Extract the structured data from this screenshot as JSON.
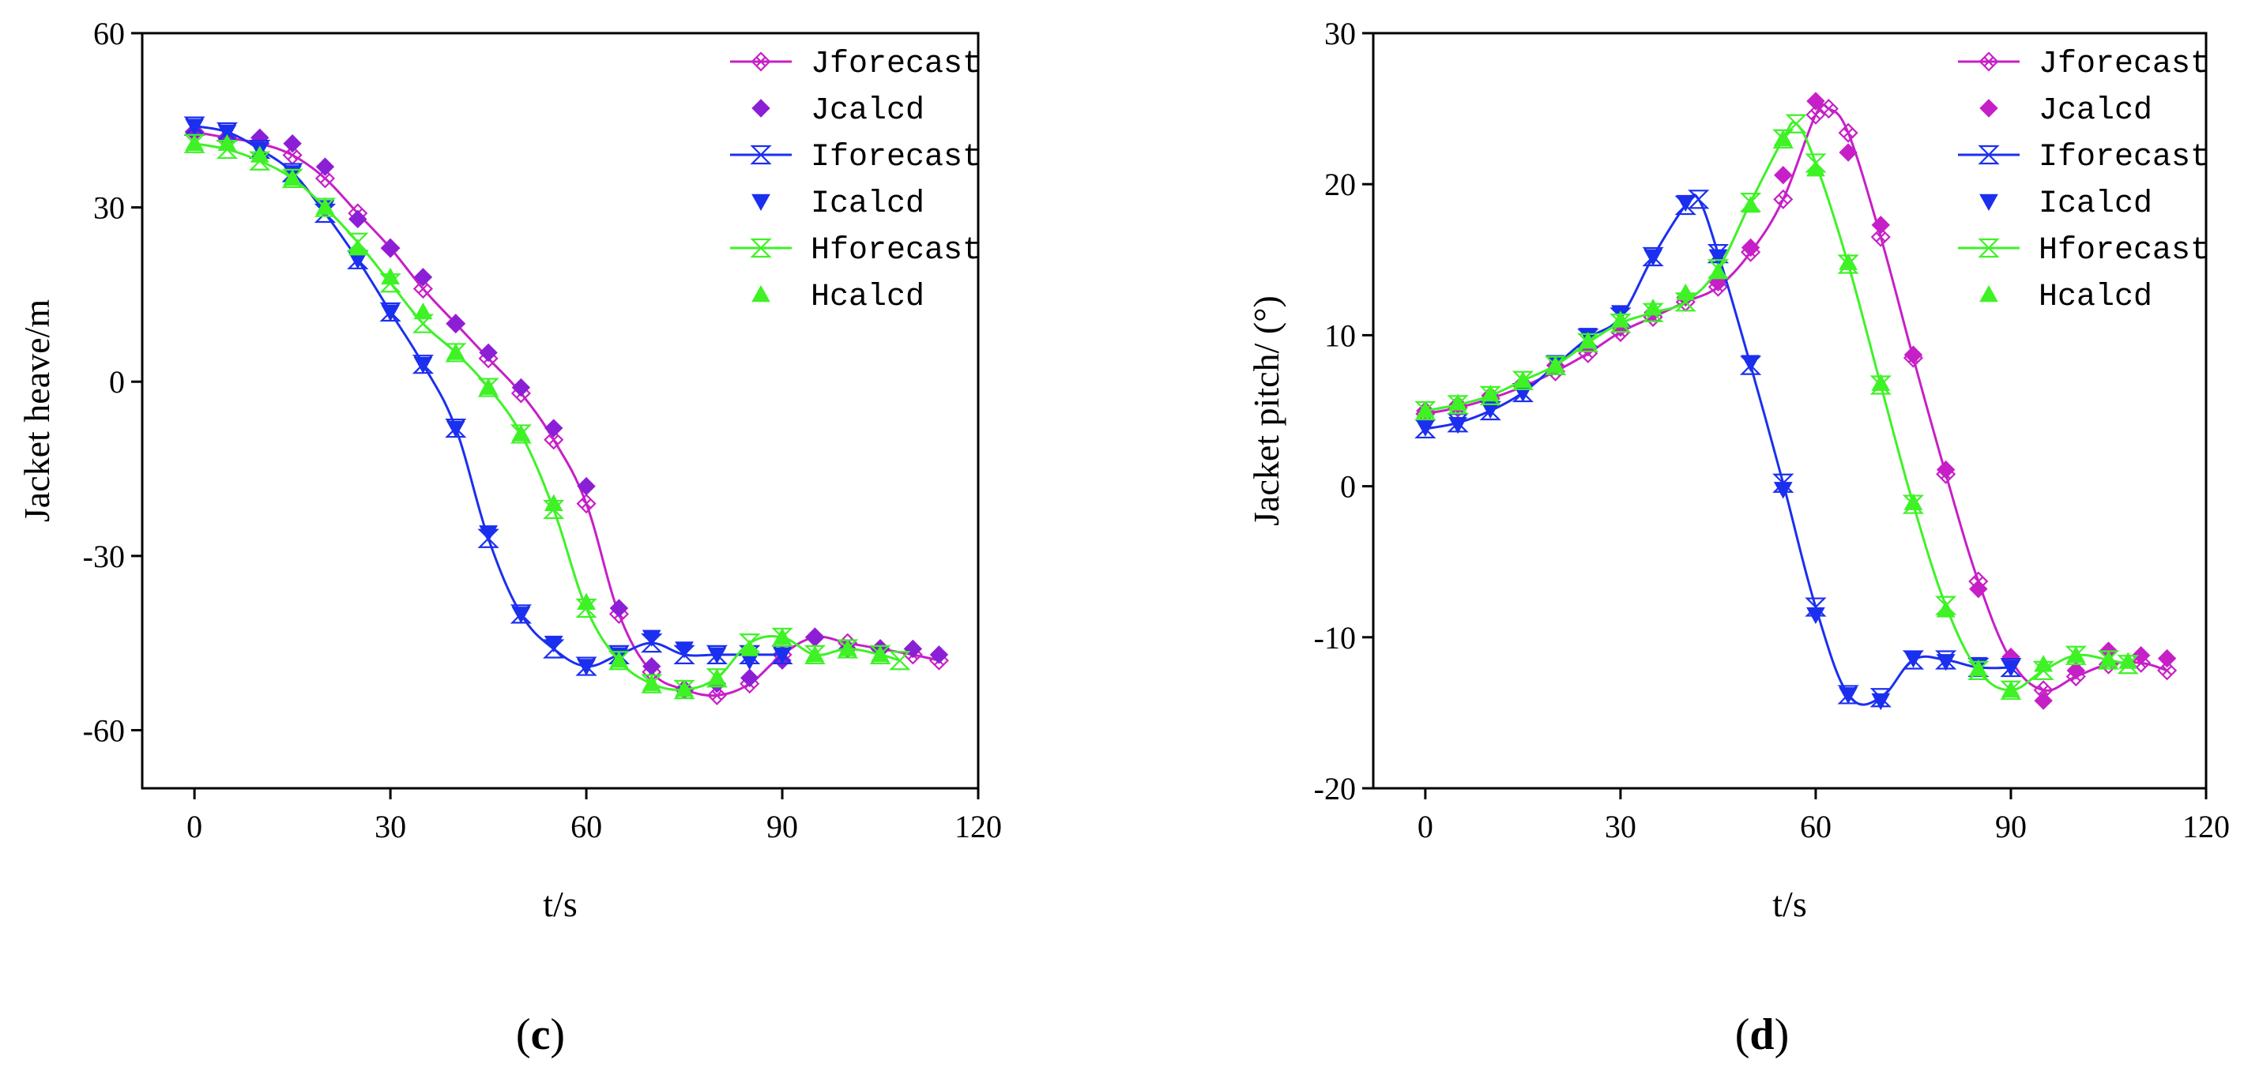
{
  "panels": [
    {
      "caption_open": "(",
      "caption_letter": "c",
      "caption_close": ")",
      "chart_data": {
        "type": "line",
        "title": "",
        "xlabel": "t/s",
        "ylabel": "Jacket heave/m",
        "xlim": [
          -8,
          120
        ],
        "ylim": [
          -70,
          60
        ],
        "xticks": [
          0,
          30,
          60,
          90,
          120
        ],
        "yticks": [
          -60,
          -30,
          0,
          30,
          60
        ],
        "xtick_labels": [
          "0",
          "30",
          "60",
          "90",
          "120"
        ],
        "ytick_labels": [
          "-60",
          "-30",
          "0",
          "30",
          "60"
        ],
        "legend_position": "top-right",
        "series": [
          {
            "name": "Jforecast",
            "kind": "line",
            "marker": "x-diamond",
            "color": "#c71fc7",
            "x": [
              0,
              5,
              10,
              15,
              20,
              25,
              30,
              35,
              40,
              45,
              50,
              55,
              60,
              65,
              70,
              75,
              80,
              85,
              90,
              95,
              100,
              105,
              110,
              114
            ],
            "y": [
              43,
              42,
              41,
              39,
              35,
              29,
              23,
              16,
              10,
              4,
              -2,
              -10,
              -21,
              -40,
              -50,
              -53,
              -54,
              -52,
              -47,
              -44,
              -45,
              -46,
              -47,
              -48
            ]
          },
          {
            "name": "Jcalcd",
            "kind": "scatter",
            "marker": "diamond",
            "color": "#8b1fd6",
            "x": [
              0,
              5,
              10,
              15,
              20,
              25,
              30,
              35,
              40,
              45,
              50,
              55,
              60,
              65,
              70,
              75,
              80,
              85,
              90,
              95,
              100,
              105,
              110,
              114
            ],
            "y": [
              43,
              42,
              42,
              41,
              37,
              28,
              23,
              18,
              10,
              5,
              -1,
              -8,
              -18,
              -39,
              -49,
              -53,
              -52,
              -51,
              -48,
              -44,
              -46,
              -46,
              -46,
              -47
            ]
          },
          {
            "name": "Iforecast",
            "kind": "line",
            "marker": "x-hourglass",
            "color": "#1b2fef",
            "x": [
              0,
              5,
              10,
              15,
              20,
              25,
              30,
              35,
              40,
              45,
              50,
              55,
              60,
              65,
              70,
              75,
              80,
              85,
              90
            ],
            "y": [
              44,
              43,
              40,
              36,
              29,
              21,
              12,
              3,
              -8,
              -27,
              -40,
              -46,
              -49,
              -47,
              -45,
              -47,
              -47,
              -47,
              -47
            ]
          },
          {
            "name": "Icalcd",
            "kind": "scatter",
            "marker": "triangle-down",
            "color": "#1b2fef",
            "x": [
              0,
              5,
              10,
              15,
              20,
              25,
              30,
              35,
              40,
              45,
              50,
              55,
              60,
              65,
              70,
              75,
              80,
              85,
              90
            ],
            "y": [
              44,
              43,
              40,
              36,
              30,
              21,
              12,
              3,
              -8,
              -26,
              -40,
              -45,
              -49,
              -47,
              -44,
              -46,
              -47,
              -48,
              -47
            ]
          },
          {
            "name": "Hforecast",
            "kind": "line",
            "marker": "x-hourglass",
            "color": "#3ef226",
            "x": [
              0,
              5,
              10,
              15,
              20,
              25,
              30,
              35,
              40,
              45,
              50,
              55,
              60,
              65,
              70,
              75,
              80,
              85,
              90,
              95,
              100,
              105,
              108
            ],
            "y": [
              41,
              40,
              38,
              35,
              30,
              24,
              17,
              10,
              5,
              -1,
              -9,
              -22,
              -39,
              -48,
              -52,
              -53,
              -51,
              -45,
              -44,
              -47,
              -46,
              -47,
              -48
            ]
          },
          {
            "name": "Hcalcd",
            "kind": "scatter",
            "marker": "triangle-up",
            "color": "#3ef226",
            "x": [
              0,
              5,
              10,
              15,
              20,
              25,
              30,
              35,
              40,
              45,
              50,
              55,
              60,
              65,
              70,
              75,
              80,
              85,
              90,
              95,
              100,
              105
            ],
            "y": [
              41,
              41,
              39,
              35,
              30,
              23,
              18,
              12,
              5,
              -1,
              -9,
              -21,
              -38,
              -48,
              -52,
              -53,
              -51,
              -46,
              -44,
              -47,
              -46,
              -47
            ]
          }
        ]
      }
    },
    {
      "caption_open": "(",
      "caption_letter": "d",
      "caption_close": ")",
      "chart_data": {
        "type": "line",
        "title": "",
        "xlabel": "t/s",
        "ylabel": "Jacket pitch/ (°)",
        "xlim": [
          -8,
          120
        ],
        "ylim": [
          -20,
          30
        ],
        "xticks": [
          0,
          30,
          60,
          90,
          120
        ],
        "yticks": [
          -20,
          -10,
          0,
          10,
          20,
          30
        ],
        "xtick_labels": [
          "0",
          "30",
          "60",
          "90",
          "120"
        ],
        "ytick_labels": [
          "-20",
          "-10",
          "0",
          "10",
          "20",
          "30"
        ],
        "legend_position": "top-right",
        "series": [
          {
            "name": "Jforecast",
            "kind": "line",
            "marker": "x-diamond",
            "color": "#c71fc7",
            "x": [
              0,
              5,
              10,
              15,
              20,
              25,
              30,
              35,
              40,
              45,
              50,
              55,
              60,
              62,
              65,
              70,
              75,
              80,
              85,
              90,
              95,
              100,
              105,
              110,
              114
            ],
            "y": [
              4.8,
              5.2,
              5.8,
              6.6,
              7.6,
              8.8,
              10.2,
              11.2,
              12.2,
              13.2,
              15.5,
              19.0,
              24.6,
              25,
              23.4,
              16.5,
              8.5,
              0.8,
              -6.3,
              -11.5,
              -13.5,
              -12.6,
              -11.8,
              -11.7,
              -12.2
            ]
          },
          {
            "name": "Jcalcd",
            "kind": "scatter",
            "marker": "diamond",
            "color": "#c71fc7",
            "x": [
              0,
              5,
              10,
              15,
              20,
              25,
              30,
              35,
              40,
              45,
              50,
              55,
              60,
              65,
              70,
              75,
              80,
              85,
              90,
              95,
              100,
              105,
              110,
              114
            ],
            "y": [
              5,
              5.4,
              6,
              6.8,
              8,
              9.2,
              10.5,
              11.5,
              12.5,
              13.5,
              15.8,
              20.6,
              25.5,
              22.1,
              17.3,
              8.7,
              1.1,
              -6.8,
              -11.3,
              -14.2,
              -12.2,
              -10.9,
              -11.2,
              -11.4
            ]
          },
          {
            "name": "Iforecast",
            "kind": "line",
            "marker": "x-hourglass",
            "color": "#1b2fef",
            "x": [
              0,
              5,
              10,
              15,
              20,
              25,
              30,
              35,
              40,
              42,
              45,
              50,
              55,
              60,
              65,
              70,
              75,
              80,
              85,
              90
            ],
            "y": [
              3.8,
              4.2,
              5,
              6.2,
              8,
              9.8,
              11.2,
              15.2,
              18.6,
              19,
              15.4,
              8.0,
              0.2,
              -8.0,
              -13.8,
              -14,
              -11.5,
              -11.5,
              -12,
              -12
            ]
          },
          {
            "name": "Icalcd",
            "kind": "scatter",
            "marker": "triangle-down",
            "color": "#1b2fef",
            "x": [
              0,
              5,
              10,
              15,
              20,
              25,
              30,
              35,
              40,
              45,
              50,
              55,
              60,
              65,
              70,
              75,
              80,
              85,
              90
            ],
            "y": [
              3.9,
              4.1,
              5.1,
              6.2,
              8.2,
              10,
              11.5,
              15.2,
              18.8,
              15.2,
              8.2,
              -0.2,
              -8.5,
              -13.8,
              -14.2,
              -11.4,
              -11.6,
              -11.8,
              -12
            ]
          },
          {
            "name": "Hforecast",
            "kind": "line",
            "marker": "x-hourglass",
            "color": "#3ef226",
            "x": [
              0,
              5,
              10,
              15,
              20,
              25,
              30,
              35,
              40,
              45,
              50,
              55,
              57,
              60,
              65,
              70,
              75,
              80,
              85,
              90,
              95,
              100,
              105,
              108
            ],
            "y": [
              5,
              5.4,
              6,
              7,
              8,
              9.5,
              10.8,
              11.5,
              12.2,
              14.4,
              18.8,
              23,
              24,
              21.4,
              14.7,
              6.7,
              -1.2,
              -7.9,
              -12.2,
              -13.5,
              -12.2,
              -11.2,
              -11.5,
              -11.8
            ]
          },
          {
            "name": "Hcalcd",
            "kind": "scatter",
            "marker": "triangle-up",
            "color": "#3ef226",
            "x": [
              0,
              5,
              10,
              15,
              20,
              25,
              30,
              35,
              40,
              45,
              50,
              55,
              60,
              65,
              70,
              75,
              80,
              85,
              90,
              95,
              100,
              105,
              108
            ],
            "y": [
              5,
              5.5,
              6.1,
              7,
              8,
              9.6,
              11,
              11.8,
              12.8,
              14.2,
              18.6,
              23,
              21,
              14.8,
              6.8,
              -1.1,
              -8.2,
              -12.1,
              -13.5,
              -11.8,
              -11.2,
              -11.5,
              -11.6
            ]
          }
        ]
      }
    }
  ]
}
